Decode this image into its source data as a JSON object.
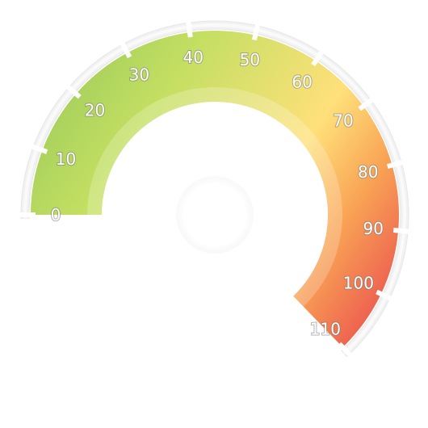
{
  "chart_data": {
    "type": "gauge",
    "min": 0,
    "max": 110,
    "major_ticks": [
      0,
      10,
      20,
      30,
      40,
      50,
      60,
      70,
      80,
      90,
      100,
      110
    ],
    "tick_labels": [
      "0",
      "10",
      "20",
      "30",
      "40",
      "50",
      "60",
      "70",
      "80",
      "90",
      "100",
      "110"
    ],
    "color_stops": [
      {
        "value": 0,
        "color": "#a6d05c"
      },
      {
        "value": 50,
        "color": "#c3df62"
      },
      {
        "value": 80,
        "color": "#ffe07a"
      },
      {
        "value": 95,
        "color": "#f9a455"
      },
      {
        "value": 110,
        "color": "#ee6450"
      }
    ],
    "title": "",
    "value_label": ""
  }
}
